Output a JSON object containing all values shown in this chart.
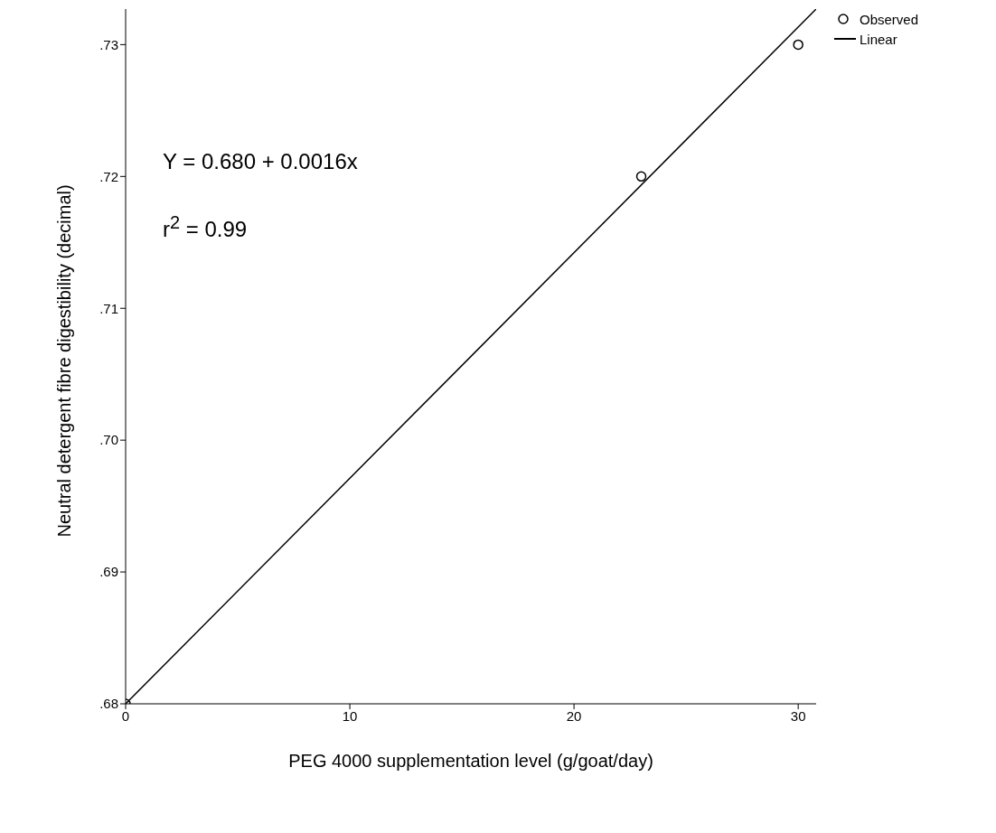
{
  "chart_data": {
    "type": "scatter",
    "xlabel": "PEG 4000 supplementation level (g/goat/day)",
    "ylabel": "Neutral detergent fibre digestibility (decimal)",
    "annotations": [
      "Y = 0.680 + 0.0016x",
      "r$^{2}$ = 0.99"
    ],
    "series": [
      {
        "name": "Observed",
        "color": "#000000",
        "marker": "circle",
        "x": [
          0,
          23,
          30
        ],
        "values": [
          0.68,
          0.72,
          0.73
        ]
      },
      {
        "name": "Linear",
        "type": "line",
        "color": "#000000",
        "marker": "none",
        "line_style": "solid",
        "x": [
          0,
          30.8
        ],
        "values": [
          0.68,
          0.7327
        ]
      }
    ],
    "xlim": [
      0,
      30.8
    ],
    "xticks": [
      0,
      10,
      20,
      30
    ],
    "ylim": [
      0.68,
      0.7327
    ],
    "yticks": [
      {
        "value": 0.68,
        "label": ".68"
      },
      {
        "value": 0.69,
        "label": ".69"
      },
      {
        "value": 0.7,
        "label": ".70"
      },
      {
        "value": 0.71,
        "label": ".71"
      },
      {
        "value": 0.72,
        "label": ".72"
      },
      {
        "value": 0.73,
        "label": ".73"
      }
    ],
    "grid": false,
    "legend": "top right"
  }
}
